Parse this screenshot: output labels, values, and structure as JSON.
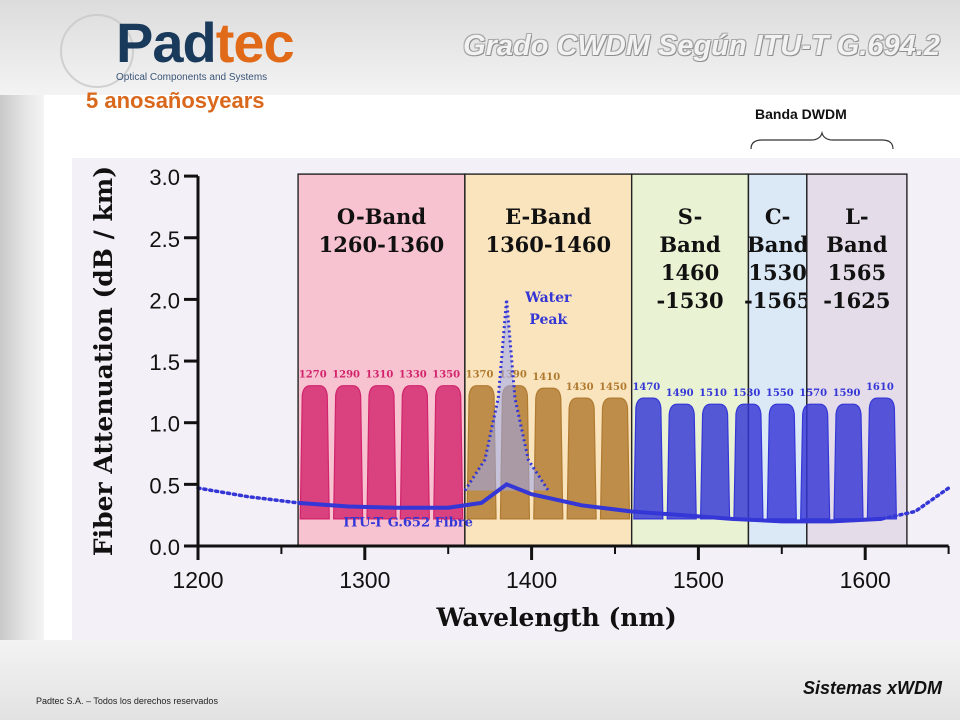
{
  "header": {
    "logo": {
      "word_left": "Pad",
      "word_right": "tec",
      "tagline": "Optical Components and Systems",
      "anniversary": "5 anosañosyears"
    },
    "title": "Grado CWDM Según ITU-T G.694.2",
    "dwdm_label": "Banda DWDM"
  },
  "footer": {
    "copyright": "Padtec S.A. – Todos los derechos reservados",
    "section": "Sistemas xWDM"
  },
  "colors": {
    "o_band": "#f7c3d0",
    "e_band": "#fae4bd",
    "s_band": "#eaf2d4",
    "c_band": "#dbe8f6",
    "l_band": "#e5dcea",
    "o_channels": "#d2246c",
    "e_channels": "#b07a30",
    "s_l_channels": "#3436d6",
    "fibre_curve": "#3436d6"
  },
  "chart_data": {
    "type": "area",
    "xlabel": "Wavelength (nm)",
    "ylabel": "Fiber Attenuation (dB / km)",
    "xlim": [
      1200,
      1650
    ],
    "ylim": [
      0,
      3.0
    ],
    "xticks": [
      "1200",
      "1300",
      "1400",
      "1500",
      "1600"
    ],
    "yticks": [
      "0.0",
      "0.5",
      "1.0",
      "1.5",
      "2.0",
      "2.5",
      "3.0"
    ],
    "bands": [
      {
        "name": "O-Band",
        "range_label": "1260-1360",
        "start": 1260,
        "end": 1360
      },
      {
        "name": "E-Band",
        "range_label": "1360-1460",
        "start": 1360,
        "end": 1460
      },
      {
        "name": "S-Band",
        "range_label": "1460 -1530",
        "start": 1460,
        "end": 1530
      },
      {
        "name": "C-Band",
        "range_label": "1530 -1565",
        "start": 1530,
        "end": 1565
      },
      {
        "name": "L-Band",
        "range_label": "1565 -1625",
        "start": 1565,
        "end": 1625
      }
    ],
    "band_text_lines": [
      [
        "O-Band",
        "1260-1360"
      ],
      [
        "E-Band",
        "1360-1460"
      ],
      [
        "S-",
        "Band",
        "1460",
        "-1530"
      ],
      [
        "C-",
        "Band",
        "1530",
        "-1565"
      ],
      [
        "L-",
        "Band",
        "1565",
        "-1625"
      ]
    ],
    "channels": [
      {
        "label": "1270",
        "wavelength": 1270,
        "height": 1.3,
        "group": "o"
      },
      {
        "label": "1290",
        "wavelength": 1290,
        "height": 1.3,
        "group": "o"
      },
      {
        "label": "1310",
        "wavelength": 1310,
        "height": 1.3,
        "group": "o"
      },
      {
        "label": "1330",
        "wavelength": 1330,
        "height": 1.3,
        "group": "o"
      },
      {
        "label": "1350",
        "wavelength": 1350,
        "height": 1.3,
        "group": "o"
      },
      {
        "label": "1370",
        "wavelength": 1370,
        "height": 1.3,
        "group": "e"
      },
      {
        "label": "1390",
        "wavelength": 1390,
        "height": 1.3,
        "group": "e"
      },
      {
        "label": "1410",
        "wavelength": 1410,
        "height": 1.28,
        "group": "e"
      },
      {
        "label": "1430",
        "wavelength": 1430,
        "height": 1.2,
        "group": "e"
      },
      {
        "label": "1450",
        "wavelength": 1450,
        "height": 1.2,
        "group": "e"
      },
      {
        "label": "1470",
        "wavelength": 1470,
        "height": 1.2,
        "group": "s"
      },
      {
        "label": "1490",
        "wavelength": 1490,
        "height": 1.15,
        "group": "s"
      },
      {
        "label": "1510",
        "wavelength": 1510,
        "height": 1.15,
        "group": "s"
      },
      {
        "label": "1530",
        "wavelength": 1530,
        "height": 1.15,
        "group": "s"
      },
      {
        "label": "1550",
        "wavelength": 1550,
        "height": 1.15,
        "group": "s"
      },
      {
        "label": "1570",
        "wavelength": 1570,
        "height": 1.15,
        "group": "s"
      },
      {
        "label": "1590",
        "wavelength": 1590,
        "height": 1.15,
        "group": "s"
      },
      {
        "label": "1610",
        "wavelength": 1610,
        "height": 1.2,
        "group": "s"
      }
    ],
    "attenuation_curve": {
      "name": "ITU-T G.652 Fibre",
      "points": [
        [
          1200,
          0.47
        ],
        [
          1230,
          0.4
        ],
        [
          1260,
          0.35
        ],
        [
          1290,
          0.32
        ],
        [
          1320,
          0.31
        ],
        [
          1350,
          0.31
        ],
        [
          1370,
          0.35
        ],
        [
          1385,
          0.5
        ],
        [
          1400,
          0.42
        ],
        [
          1430,
          0.33
        ],
        [
          1460,
          0.28
        ],
        [
          1490,
          0.25
        ],
        [
          1520,
          0.22
        ],
        [
          1550,
          0.2
        ],
        [
          1580,
          0.2
        ],
        [
          1610,
          0.22
        ],
        [
          1630,
          0.28
        ],
        [
          1650,
          0.47
        ]
      ]
    },
    "water_peak": {
      "label_lines": [
        "Water",
        "Peak"
      ],
      "points": [
        [
          1360,
          0.45
        ],
        [
          1372,
          0.7
        ],
        [
          1380,
          1.2
        ],
        [
          1385,
          2.0
        ],
        [
          1390,
          1.2
        ],
        [
          1398,
          0.7
        ],
        [
          1410,
          0.45
        ]
      ]
    }
  }
}
